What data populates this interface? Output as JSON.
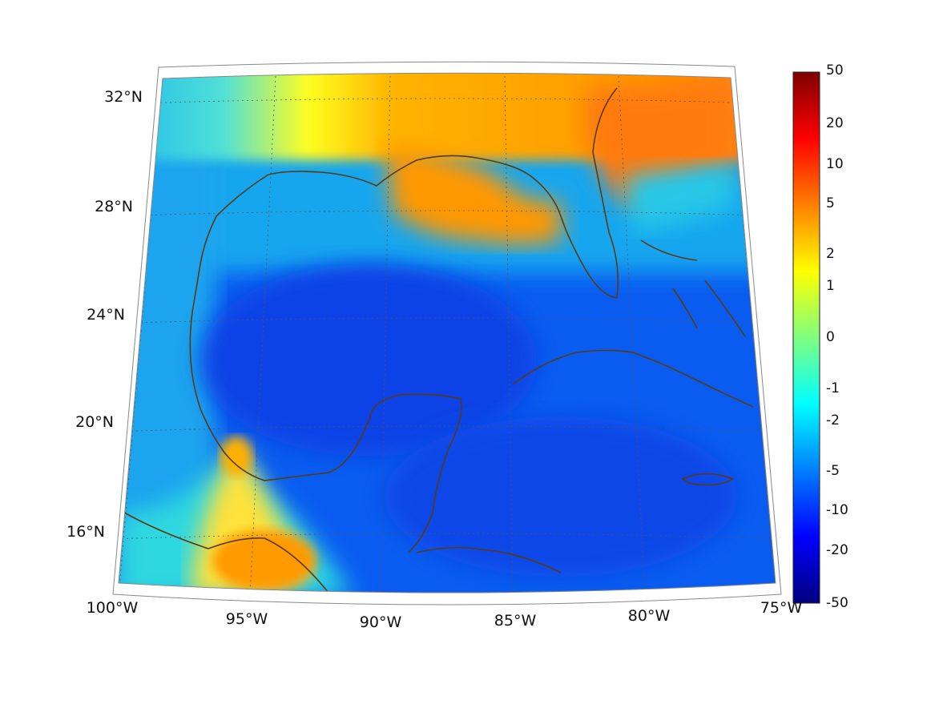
{
  "map": {
    "projection": "conic",
    "lon_range": [
      -100,
      -75
    ],
    "lat_range": [
      14,
      33
    ],
    "graticule": "dotted",
    "coastline_color": "#5a3a12",
    "lat_labels": [
      "32°N",
      "28°N",
      "24°N",
      "20°N",
      "16°N"
    ],
    "lon_labels": [
      "100°W",
      "95°W",
      "90°W",
      "85°W",
      "80°W",
      "75°W"
    ]
  },
  "colorbar": {
    "colormap": "jet",
    "ticks": [
      "50",
      "20",
      "10",
      "5",
      "2",
      "1",
      "0",
      "-1",
      "-2",
      "-5",
      "-10",
      "-20",
      "-50"
    ]
  },
  "field_regions": {
    "north_warm": "orange",
    "gulf_interior": "blue",
    "southwest_coast_warm": "orange",
    "caribbean": "blue"
  }
}
